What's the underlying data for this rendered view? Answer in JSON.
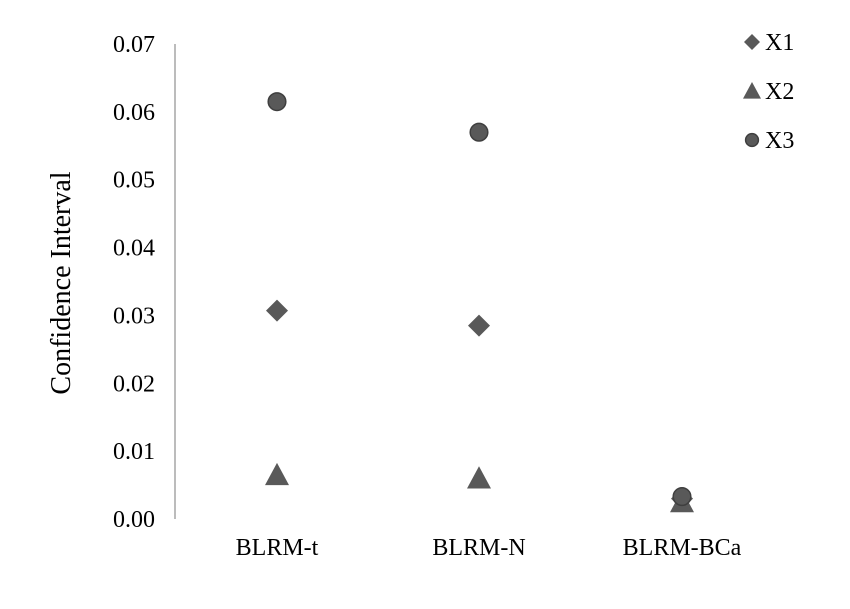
{
  "chart_data": {
    "type": "scatter",
    "categories": [
      "BLRM-t",
      "BLRM-N",
      "BLRM-BCa"
    ],
    "ylabel": "Confidence Interval",
    "ylim": [
      0,
      0.07
    ],
    "yticks": [
      "0.00",
      "0.01",
      "0.02",
      "0.03",
      "0.04",
      "0.05",
      "0.06",
      "0.07"
    ],
    "grid": false,
    "legend_position": "top-right",
    "series": [
      {
        "name": "X1",
        "marker": "diamond",
        "color": "#595959",
        "values": [
          0.0307,
          0.0285,
          0.003
        ]
      },
      {
        "name": "X2",
        "marker": "triangle",
        "color": "#595959",
        "values": [
          0.0065,
          0.006,
          0.0025
        ]
      },
      {
        "name": "X3",
        "marker": "circle",
        "color": "#595959",
        "values": [
          0.0615,
          0.057,
          0.0033
        ]
      }
    ]
  }
}
